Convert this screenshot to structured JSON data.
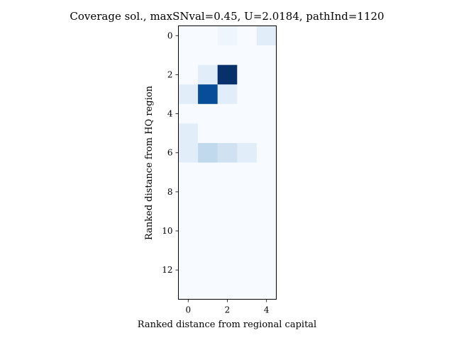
{
  "chart_data": {
    "type": "heatmap",
    "title": "Coverage sol., maxSNval=0.45, U=2.0184, pathInd=1120",
    "xlabel": "Ranked distance from regional capital",
    "ylabel": "Ranked distance from HQ region",
    "x_ticks": [
      "0",
      "2",
      "4"
    ],
    "y_ticks": [
      "0",
      "2",
      "4",
      "6",
      "8",
      "10",
      "12"
    ],
    "x_range": [
      -0.5,
      4.5
    ],
    "y_range": [
      13.5,
      -0.5
    ],
    "colormap": "Blues",
    "vmin": 0,
    "vmax": 0.45,
    "grid": false,
    "values": [
      [
        0,
        0,
        0.02,
        0,
        0.05
      ],
      [
        0,
        0,
        0,
        0,
        0
      ],
      [
        0,
        0.05,
        0.45,
        0,
        0
      ],
      [
        0.05,
        0.4,
        0.05,
        0,
        0
      ],
      [
        0,
        0,
        0,
        0,
        0
      ],
      [
        0.05,
        0,
        0,
        0,
        0
      ],
      [
        0.05,
        0.12,
        0.09,
        0.05,
        0
      ],
      [
        0,
        0,
        0,
        0,
        0
      ],
      [
        0,
        0,
        0,
        0,
        0
      ],
      [
        0,
        0,
        0,
        0,
        0
      ],
      [
        0,
        0,
        0,
        0,
        0
      ],
      [
        0,
        0,
        0,
        0,
        0
      ],
      [
        0,
        0,
        0,
        0,
        0
      ],
      [
        0,
        0,
        0,
        0,
        0
      ]
    ]
  }
}
